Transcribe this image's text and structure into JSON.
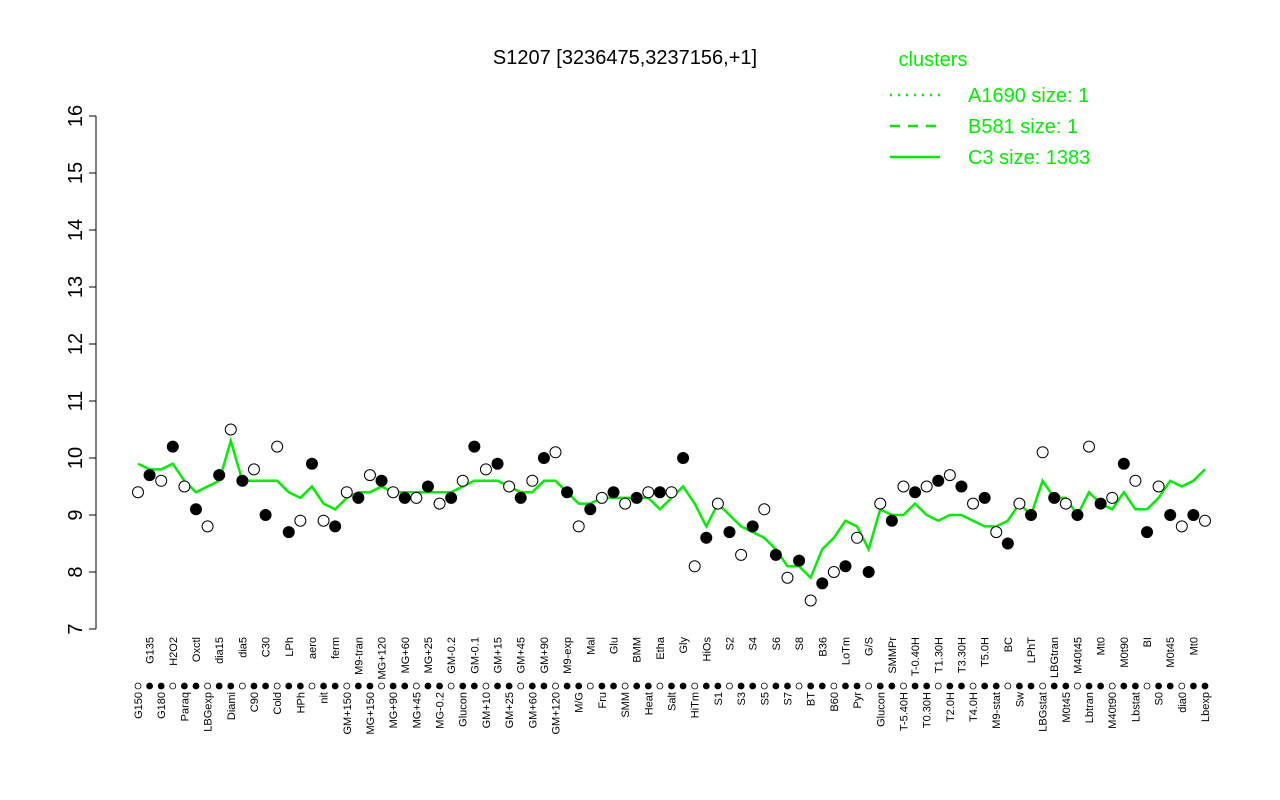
{
  "chart_data": {
    "type": "line",
    "title": "S1207 [3236475,3237156,+1]",
    "categories": [
      "G150",
      "G135",
      "G180",
      "H2O2",
      "Paraq",
      "Oxctl",
      "LBGexp",
      "dia15",
      "Diami",
      "dia5",
      "C90",
      "C30",
      "Cold",
      "LPh",
      "HPh",
      "aero",
      "nit",
      "ferm",
      "GM+150",
      "M9-tran",
      "MG+150",
      "MG+120",
      "MG+90",
      "MG+60",
      "MG+45",
      "MG+25",
      "MG-0.2",
      "GM-0.2",
      "Glucon",
      "GM-0.1",
      "GM+10",
      "GM+15",
      "GM+25",
      "GM+45",
      "GM+60",
      "GM+90",
      "GM+120",
      "M9-exp",
      "M/G",
      "Mal",
      "Fru",
      "Glu",
      "SMM",
      "BMM",
      "Heat",
      "Etha",
      "Salt",
      "Gly",
      "HiTm",
      "HiOs",
      "S1",
      "S2",
      "S3",
      "S4",
      "S5",
      "S6",
      "S7",
      "S8",
      "BT",
      "B36",
      "B60",
      "LoTm",
      "Pyr",
      "G/S",
      "Glucon",
      "SMMPr",
      "T-5.40H",
      "T-0.40H",
      "T0.30H",
      "T1.30H",
      "T2.0H",
      "T3.30H",
      "T4.0H",
      "T5.0H",
      "M9-stat",
      "BC",
      "Sw",
      "LPhT",
      "LBGstat",
      "LBGtran",
      "M0t45",
      "M40t45",
      "Lbtran",
      "Mt0",
      "M40t90",
      "M0t90",
      "Lbstat",
      "BI",
      "S0",
      "M0t45",
      "dia0",
      "Mt0",
      "Lbexp"
    ],
    "points": {
      "color": "#000000",
      "values": [
        9.4,
        9.7,
        9.6,
        10.2,
        9.5,
        9.1,
        8.8,
        9.7,
        10.5,
        9.6,
        9.8,
        9.0,
        10.2,
        8.7,
        8.9,
        9.9,
        8.9,
        8.8,
        9.4,
        9.3,
        9.7,
        9.6,
        9.4,
        9.3,
        9.3,
        9.5,
        9.2,
        9.3,
        9.6,
        10.2,
        9.8,
        9.9,
        9.5,
        9.3,
        9.6,
        10.0,
        10.1,
        9.4,
        8.8,
        9.1,
        9.3,
        9.4,
        9.2,
        9.3,
        9.4,
        9.4,
        9.4,
        10.0,
        8.1,
        8.6,
        9.2,
        8.7,
        8.3,
        8.8,
        9.1,
        8.3,
        7.9,
        8.2,
        7.5,
        7.8,
        8.0,
        8.1,
        8.6,
        8.0,
        9.2,
        8.9,
        9.5,
        9.4,
        9.5,
        9.6,
        9.7,
        9.5,
        9.2,
        9.3,
        8.7,
        8.5,
        9.2,
        9.0,
        10.1,
        9.3,
        9.2,
        9.0,
        10.2,
        9.2,
        9.3,
        9.9,
        9.6,
        8.7,
        9.5,
        9.0,
        8.8,
        9.0,
        8.9
      ]
    },
    "legend": {
      "title": "clusters",
      "position": "top-right"
    },
    "series": [
      {
        "name": "A1690 size: 1",
        "color": "#00ee00",
        "dash": "dotted"
      },
      {
        "name": "B581 size: 1",
        "color": "#00ee00",
        "dash": "dashed"
      },
      {
        "name": "C3 size: 1383",
        "color": "#00ee00",
        "dash": "solid",
        "values": [
          9.9,
          9.8,
          9.8,
          9.9,
          9.6,
          9.4,
          9.5,
          9.6,
          10.3,
          9.6,
          9.6,
          9.6,
          9.6,
          9.4,
          9.3,
          9.5,
          9.2,
          9.1,
          9.3,
          9.4,
          9.4,
          9.5,
          9.4,
          9.4,
          9.4,
          9.4,
          9.4,
          9.4,
          9.5,
          9.6,
          9.6,
          9.6,
          9.5,
          9.4,
          9.4,
          9.6,
          9.6,
          9.4,
          9.2,
          9.2,
          9.3,
          9.3,
          9.3,
          9.3,
          9.3,
          9.1,
          9.3,
          9.5,
          9.2,
          8.8,
          9.2,
          9.0,
          8.8,
          8.7,
          8.6,
          8.4,
          8.1,
          8.1,
          7.9,
          8.4,
          8.6,
          8.9,
          8.8,
          8.4,
          9.1,
          9.0,
          9.0,
          9.2,
          9.0,
          8.9,
          9.0,
          9.0,
          8.9,
          8.8,
          8.8,
          8.9,
          9.2,
          9.0,
          9.6,
          9.3,
          9.3,
          9.0,
          9.4,
          9.2,
          9.1,
          9.4,
          9.1,
          9.1,
          9.3,
          9.6,
          9.5,
          9.6,
          9.8
        ]
      }
    ],
    "ylim": [
      7,
      16
    ],
    "yticks": [
      7,
      8,
      9,
      10,
      11,
      12,
      13,
      14,
      15,
      16
    ]
  }
}
